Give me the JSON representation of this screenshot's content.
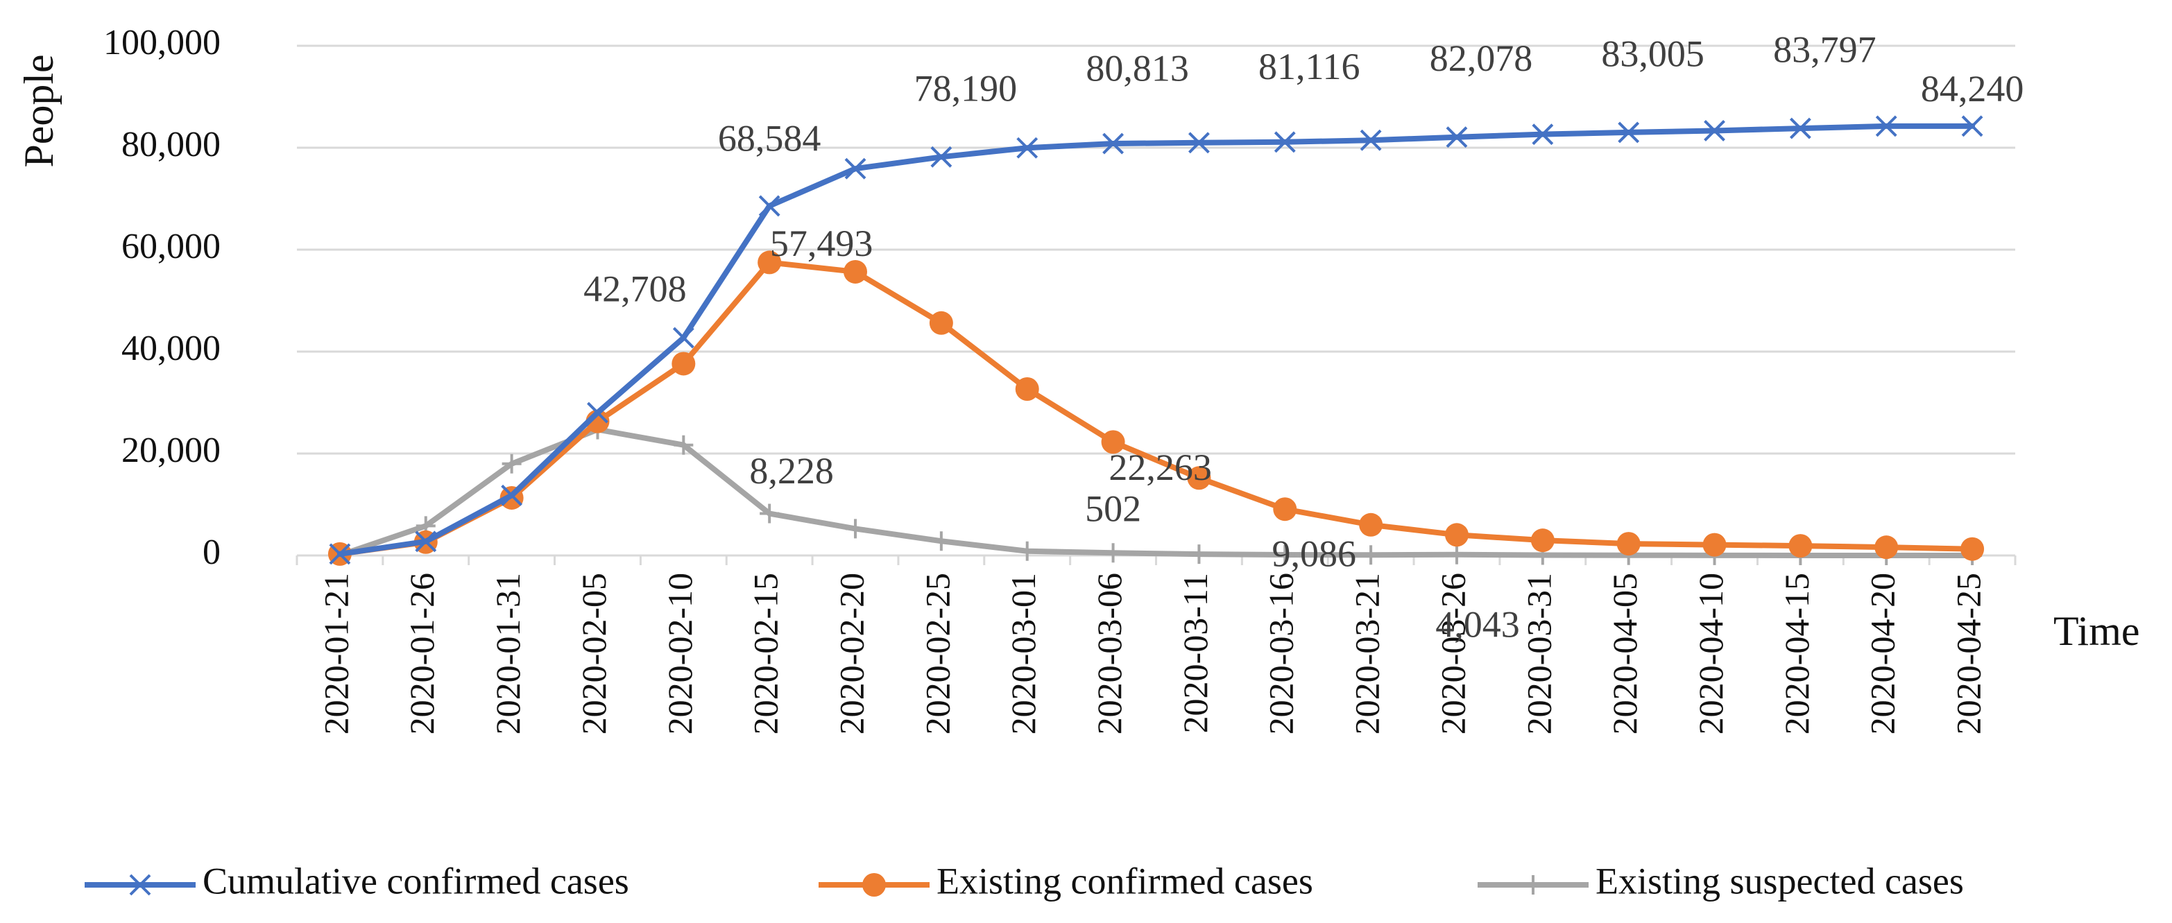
{
  "chart_data": {
    "type": "line",
    "title": "",
    "xlabel": "Time",
    "ylabel": "People",
    "ylim": [
      0,
      100000
    ],
    "y_ticks": [
      0,
      20000,
      40000,
      60000,
      80000,
      100000
    ],
    "y_tick_labels": [
      "0",
      "20,000",
      "40,000",
      "60,000",
      "80,000",
      "100,000"
    ],
    "grid": "horizontal",
    "legend_position": "bottom",
    "categories": [
      "2020-01-21",
      "2020-01-26",
      "2020-01-31",
      "2020-02-05",
      "2020-02-10",
      "2020-02-15",
      "2020-02-20",
      "2020-02-25",
      "2020-03-01",
      "2020-03-06",
      "2020-03-11",
      "2020-03-16",
      "2020-03-21",
      "2020-03-26",
      "2020-03-31",
      "2020-04-05",
      "2020-04-10",
      "2020-04-15",
      "2020-04-20",
      "2020-04-25"
    ],
    "series": [
      {
        "name": "Cumulative confirmed cases",
        "color": "#4472C4",
        "marker": "x",
        "values": [
          291,
          2744,
          11791,
          28018,
          42708,
          68584,
          75891,
          78190,
          79968,
          80813,
          80980,
          81116,
          81467,
          82078,
          82631,
          83005,
          83341,
          83797,
          84237,
          84240
        ]
      },
      {
        "name": "Existing confirmed cases",
        "color": "#ED7D31",
        "marker": "circle",
        "values": [
          291,
          2616,
          11299,
          26302,
          37626,
          57493,
          55652,
          45604,
          32652,
          22263,
          15197,
          9086,
          6013,
          4043,
          2970,
          2301,
          2093,
          1893,
          1610,
          1267
        ]
      },
      {
        "name": "Existing suspected cases",
        "color": "#A5A5A5",
        "marker": "plus",
        "values": [
          54,
          5794,
          17988,
          24702,
          21675,
          8228,
          5248,
          2824,
          851,
          502,
          253,
          128,
          106,
          174,
          74,
          40,
          19,
          5,
          2,
          1
        ]
      }
    ],
    "annotations": [
      {
        "series": 0,
        "index": 4,
        "text": "42,708"
      },
      {
        "series": 0,
        "index": 5,
        "text": "68,584"
      },
      {
        "series": 0,
        "index": 7,
        "text": "78,190"
      },
      {
        "series": 0,
        "index": 9,
        "text": "80,813"
      },
      {
        "series": 0,
        "index": 11,
        "text": "81,116"
      },
      {
        "series": 0,
        "index": 13,
        "text": "82,078"
      },
      {
        "series": 0,
        "index": 15,
        "text": "83,005"
      },
      {
        "series": 0,
        "index": 17,
        "text": "83,797"
      },
      {
        "series": 0,
        "index": 19,
        "text": "84,240"
      },
      {
        "series": 1,
        "index": 5,
        "text": "57,493"
      },
      {
        "series": 1,
        "index": 9,
        "text": "22,263"
      },
      {
        "series": 1,
        "index": 11,
        "text": "9,086"
      },
      {
        "series": 1,
        "index": 13,
        "text": "4,043"
      },
      {
        "series": 2,
        "index": 5,
        "text": "8,228"
      },
      {
        "series": 2,
        "index": 9,
        "text": "502"
      }
    ]
  }
}
